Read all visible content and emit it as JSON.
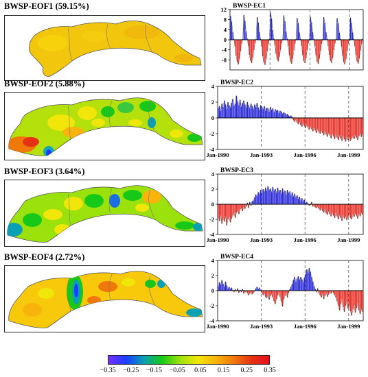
{
  "eof_titles": [
    "BWSP-EOF1  (59.15%)",
    "BWSP-EOF2  (5.88%)",
    "BWSP-EOF3  (3.64%)",
    "BWSP-EOF4  (2.72%)"
  ],
  "colorbar": {
    "colors": [
      "#7b2fff",
      "#1a3dff",
      "#0aa0b4",
      "#18c818",
      "#9be20c",
      "#f0e60a",
      "#f8b40a",
      "#f0780a",
      "#e63214",
      "#e60f1e"
    ],
    "labels": [
      "-0.35",
      "-0.25",
      "-0.15",
      "-0.05",
      "0.05",
      "0.15",
      "0.25",
      "0.35"
    ]
  },
  "chart_data": [
    {
      "type": "bar",
      "title": "BWSP-EC1",
      "ylim": [
        -12,
        12
      ],
      "yticks": [
        "12",
        "8",
        "4",
        "0",
        "-4",
        "-8"
      ],
      "ytick_values": [
        12,
        8,
        4,
        0,
        -4,
        -8
      ],
      "xtick_labels": [],
      "vlines": [
        "Jan-1993",
        "Jan-1996",
        "Jan-1999"
      ],
      "x_start": "Jan-1990",
      "x_end": "Dec-1999",
      "positive_color": "#2b2bd9",
      "negative_color": "#e8332b",
      "values": [
        9.5,
        7.2,
        3.1,
        0.4,
        -2.6,
        -6.4,
        -8.8,
        -9.8,
        -7.6,
        -4.4,
        -1.6,
        0.3,
        9.8,
        7.6,
        3.3,
        0.4,
        -2.5,
        -6.0,
        -8.3,
        -9.2,
        -7.2,
        -4.2,
        -1.5,
        0.3,
        9.0,
        6.8,
        3.0,
        0.4,
        -2.7,
        -6.6,
        -9.0,
        -10.0,
        -7.8,
        -4.5,
        -1.7,
        0.3,
        11.0,
        8.4,
        3.8,
        0.5,
        -2.3,
        -5.6,
        -7.8,
        -8.6,
        -6.8,
        -4.0,
        -1.4,
        0.3,
        9.7,
        7.4,
        3.2,
        0.4,
        -2.6,
        -6.2,
        -8.6,
        -9.5,
        -7.4,
        -4.3,
        -1.6,
        0.3,
        8.7,
        6.6,
        2.9,
        0.4,
        -2.5,
        -6.1,
        -8.4,
        -9.3,
        -7.3,
        -4.2,
        -1.5,
        0.3,
        9.1,
        6.9,
        3.0,
        0.4,
        -2.6,
        -6.3,
        -8.7,
        -9.6,
        -7.5,
        -4.4,
        -1.6,
        0.3,
        9.0,
        6.8,
        3.0,
        0.4,
        -2.5,
        -6.0,
        -8.3,
        -9.2,
        -7.2,
        -4.2,
        -1.5,
        0.3,
        8.6,
        6.5,
        2.8,
        0.4,
        -2.7,
        -6.4,
        -8.9,
        -9.8,
        -7.7,
        -4.5,
        -1.6,
        0.3,
        8.8,
        6.7,
        2.9,
        0.4,
        -2.6,
        -6.2,
        -8.6,
        -9.5,
        -7.4,
        -4.3,
        -1.6,
        0.3
      ]
    },
    {
      "type": "bar",
      "title": "BWSP-EC2",
      "ylim": [
        -4,
        4
      ],
      "yticks": [
        "4",
        "2",
        "0",
        "-2",
        "-4"
      ],
      "ytick_values": [
        4,
        2,
        0,
        -2,
        -4
      ],
      "xtick_labels": [
        "Jan-1990",
        "Jan-1993",
        "Jan-1996",
        "Jan-1999"
      ],
      "vlines": [
        "Jan-1993",
        "Jan-1996",
        "Jan-1999"
      ],
      "x_start": "Jan-1990",
      "x_end": "Dec-1999",
      "positive_color": "#2b2bd9",
      "negative_color": "#e8332b",
      "values": [
        1.2,
        1.5,
        0.9,
        1.8,
        1.4,
        2.2,
        1.7,
        1.1,
        2.0,
        1.6,
        1.3,
        1.9,
        2.4,
        1.5,
        1.8,
        2.8,
        2.1,
        1.6,
        2.3,
        1.4,
        1.9,
        2.2,
        1.7,
        1.3,
        2.0,
        1.6,
        1.2,
        1.8,
        1.5,
        1.1,
        1.7,
        1.4,
        1.9,
        1.3,
        1.0,
        1.6,
        1.4,
        1.1,
        1.5,
        0.9,
        1.3,
        1.2,
        0.8,
        1.4,
        1.0,
        1.2,
        0.7,
        1.1,
        0.9,
        1.0,
        0.6,
        0.9,
        0.8,
        0.5,
        0.7,
        0.6,
        0.4,
        0.5,
        0.3,
        0.2,
        0.3,
        0.1,
        -0.3,
        -0.5,
        -0.2,
        -0.6,
        -0.8,
        -0.5,
        -0.9,
        -1.1,
        -0.7,
        -1.0,
        -1.3,
        -0.9,
        -1.2,
        -1.5,
        -1.1,
        -1.4,
        -1.7,
        -1.3,
        -1.6,
        -1.9,
        -1.4,
        -1.8,
        -2.0,
        -1.6,
        -1.9,
        -2.2,
        -1.7,
        -2.1,
        -2.4,
        -1.9,
        -2.2,
        -2.6,
        -2.0,
        -2.3,
        -2.7,
        -2.1,
        -2.5,
        -2.8,
        -2.2,
        -2.6,
        -2.9,
        -2.3,
        -2.7,
        -3.0,
        -2.4,
        -2.8,
        -2.5,
        -2.9,
        -2.6,
        -2.4,
        -2.7,
        -2.2,
        -2.5,
        -2.8,
        -2.3,
        -2.0,
        -2.4,
        -2.1
      ]
    },
    {
      "type": "bar",
      "title": "BWSP-EC3",
      "ylim": [
        -4,
        4
      ],
      "yticks": [
        "4",
        "2",
        "0",
        "-2",
        "-4"
      ],
      "ytick_values": [
        4,
        2,
        0,
        -2,
        -4
      ],
      "xtick_labels": [
        "Jan-1990",
        "Jan-1993",
        "Jan-1996",
        "Jan-1999"
      ],
      "vlines": [
        "Jan-1993",
        "Jan-1996",
        "Jan-1999"
      ],
      "x_start": "Jan-1990",
      "x_end": "Dec-1999",
      "positive_color": "#2b2bd9",
      "negative_color": "#e8332b",
      "values": [
        -1.8,
        -2.2,
        -1.5,
        -2.6,
        -1.9,
        -2.3,
        -1.6,
        -2.8,
        -2.0,
        -1.7,
        -2.4,
        -1.9,
        -1.5,
        -1.2,
        -1.8,
        -1.1,
        -0.9,
        -1.3,
        -0.7,
        -0.5,
        -0.9,
        -0.4,
        -0.6,
        -0.3,
        0.2,
        -0.5,
        0.3,
        -0.2,
        0.4,
        0.5,
        0.9,
        1.3,
        1.1,
        1.6,
        1.4,
        1.9,
        1.5,
        2.0,
        1.7,
        2.2,
        1.8,
        2.4,
        1.9,
        2.1,
        1.6,
        2.3,
        1.8,
        2.0,
        1.5,
        2.2,
        1.7,
        1.9,
        1.4,
        2.1,
        1.6,
        1.8,
        1.3,
        1.9,
        1.5,
        1.7,
        1.2,
        1.6,
        1.0,
        1.4,
        0.9,
        1.2,
        0.7,
        1.0,
        0.5,
        0.8,
        0.4,
        0.6,
        0.2,
        0.3,
        0.1,
        -0.2,
        -0.1,
        0.3,
        -0.3,
        -0.2,
        -0.4,
        -0.5,
        -0.3,
        -0.6,
        -0.8,
        -0.5,
        -0.9,
        -1.1,
        -0.7,
        -1.2,
        -1.4,
        -0.9,
        -1.3,
        -1.6,
        -1.1,
        -1.5,
        -1.8,
        -1.2,
        -1.6,
        -2.0,
        -1.4,
        -1.8,
        -2.2,
        -1.5,
        -1.9,
        -1.6,
        -2.1,
        -1.7,
        -1.3,
        -1.8,
        -2.0,
        -1.4,
        -1.7,
        -1.2,
        -1.5,
        -1.9,
        -1.3,
        -1.6,
        -1.1,
        -1.4
      ]
    },
    {
      "type": "bar",
      "title": "BWSP-EC4",
      "ylim": [
        -4,
        4
      ],
      "yticks": [
        "4",
        "2",
        "0",
        "-2",
        "-4"
      ],
      "ytick_values": [
        4,
        2,
        0,
        -2,
        -4
      ],
      "xtick_labels": [
        "Jan-1990",
        "Jan-1993",
        "Jan-1996",
        "Jan-1999"
      ],
      "vlines": [
        "Jan-1993",
        "Jan-1996",
        "Jan-1999"
      ],
      "x_start": "Jan-1990",
      "x_end": "Dec-1999",
      "positive_color": "#2b2bd9",
      "negative_color": "#e8332b",
      "values": [
        0.6,
        1.1,
        0.8,
        1.4,
        0.9,
        0.5,
        1.2,
        0.7,
        0.3,
        0.5,
        0.2,
        0.4,
        0.1,
        -0.2,
        0.2,
        -0.1,
        0.3,
        -0.3,
        0.1,
        -0.2,
        0.2,
        -0.4,
        -0.2,
        -0.1,
        -0.3,
        -0.6,
        -0.4,
        -0.2,
        -0.5,
        -0.3,
        -0.1,
        0.3,
        0.5,
        0.2,
        0.4,
        0.1,
        -0.3,
        -0.6,
        -0.4,
        -0.8,
        -1.0,
        -0.5,
        -1.2,
        -0.7,
        -0.4,
        -0.9,
        -1.4,
        -1.8,
        -1.1,
        -0.6,
        -0.3,
        -0.8,
        -1.5,
        -2.1,
        -1.2,
        -0.7,
        -0.4,
        -0.9,
        -0.3,
        0.2,
        0.5,
        0.9,
        1.4,
        1.8,
        1.2,
        1.6,
        1.9,
        1.4,
        1.8,
        1.5,
        1.1,
        1.7,
        2.2,
        2.8,
        2.4,
        3.0,
        2.5,
        1.8,
        1.2,
        0.6,
        0.2,
        -0.2,
        0.3,
        -0.3,
        -0.6,
        -0.9,
        -0.4,
        -1.1,
        -0.7,
        -0.3,
        -0.8,
        -0.5,
        -0.2,
        -0.4,
        -0.1,
        -0.3,
        -0.6,
        -0.9,
        -1.4,
        -2.0,
        -2.6,
        -1.8,
        -1.2,
        -2.2,
        -2.8,
        -2.0,
        -1.5,
        -2.4,
        -1.9,
        -2.7,
        -3.3,
        -2.5,
        -2.0,
        -2.9,
        -2.3,
        -1.7,
        -2.6,
        -3.1,
        -2.4,
        -2.8
      ]
    }
  ]
}
